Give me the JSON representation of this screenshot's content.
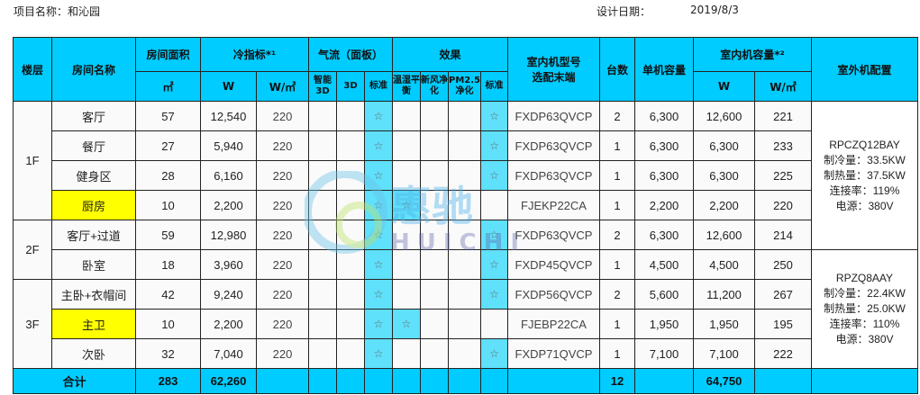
{
  "header": {
    "project_label": "项目名称：",
    "project_name": "和沁园",
    "date_label": "设计日期：",
    "date": "2019/8/3"
  },
  "columns": {
    "floor": "楼层",
    "room": "房间名称",
    "area": "房间面积",
    "area_unit": "㎡",
    "cooling": "冷指标*¹",
    "cooling_w": "W",
    "cooling_wm2": "W/㎡",
    "airflow": "气流（面板）",
    "airflow_smart": "智能3D",
    "airflow_3d": "3D",
    "airflow_std": "标准",
    "effect": "效果",
    "effect_humid": "温湿平衡",
    "effect_fresh": "新风净化",
    "effect_pm": "PM2.5净化",
    "effect_std": "标准",
    "model": "室内机型号选配末端",
    "qty": "台数",
    "unit_cap": "单机容量",
    "indoor_cap": "室内机容量*²",
    "indoor_w": "W",
    "indoor_wm2": "W/㎡",
    "outdoor": "室外机配置"
  },
  "star": "☆",
  "floors": [
    "1F",
    "2F",
    "3F"
  ],
  "rows": [
    {
      "room": "客厅",
      "area": "57",
      "w": "12,540",
      "wm2": "220",
      "air_std": true,
      "humid": false,
      "eff_std": true,
      "model": "FXDP63QVCP",
      "qty": "2",
      "unit": "6,300",
      "cap": "12,600",
      "capm2": "221",
      "highlight": false
    },
    {
      "room": "餐厅",
      "area": "27",
      "w": "5,940",
      "wm2": "220",
      "air_std": true,
      "humid": false,
      "eff_std": true,
      "model": "FXDP63QVCP",
      "qty": "1",
      "unit": "6,300",
      "cap": "6,300",
      "capm2": "233",
      "highlight": false
    },
    {
      "room": "健身区",
      "area": "28",
      "w": "6,160",
      "wm2": "220",
      "air_std": true,
      "humid": false,
      "eff_std": true,
      "model": "FXDP63QVCP",
      "qty": "1",
      "unit": "6,300",
      "cap": "6,300",
      "capm2": "225",
      "highlight": false
    },
    {
      "room": "厨房",
      "area": "10",
      "w": "2,200",
      "wm2": "220",
      "air_std": true,
      "humid": true,
      "eff_std": false,
      "model": "FJEKP22CA",
      "qty": "1",
      "unit": "2,200",
      "cap": "2,200",
      "capm2": "220",
      "highlight": true
    },
    {
      "room": "客厅+过道",
      "area": "59",
      "w": "12,980",
      "wm2": "220",
      "air_std": true,
      "humid": false,
      "eff_std": true,
      "model": "FXDP63QVCP",
      "qty": "2",
      "unit": "6,300",
      "cap": "12,600",
      "capm2": "214",
      "highlight": false
    },
    {
      "room": "卧室",
      "area": "18",
      "w": "3,960",
      "wm2": "220",
      "air_std": true,
      "humid": false,
      "eff_std": true,
      "model": "FXDP45QVCP",
      "qty": "1",
      "unit": "4,500",
      "cap": "4,500",
      "capm2": "250",
      "highlight": false
    },
    {
      "room": "主卧+衣帽间",
      "area": "42",
      "w": "9,240",
      "wm2": "220",
      "air_std": true,
      "humid": false,
      "eff_std": true,
      "model": "FXDP56QVCP",
      "qty": "2",
      "unit": "5,600",
      "cap": "11,200",
      "capm2": "267",
      "highlight": false
    },
    {
      "room": "主卫",
      "area": "10",
      "w": "2,200",
      "wm2": "220",
      "air_std": true,
      "humid": true,
      "eff_std": false,
      "model": "FJEBP22CA",
      "qty": "1",
      "unit": "1,950",
      "cap": "1,950",
      "capm2": "195",
      "highlight": true
    },
    {
      "room": "次卧",
      "area": "32",
      "w": "7,040",
      "wm2": "220",
      "air_std": true,
      "humid": false,
      "eff_std": true,
      "model": "FXDP71QVCP",
      "qty": "1",
      "unit": "7,100",
      "cap": "7,100",
      "capm2": "222",
      "highlight": false
    }
  ],
  "outdoor": [
    {
      "model": "RPCZQ12BAY",
      "cool": "制冷量：33.5KW",
      "heat": "制热量：37.5KW",
      "rate": "连接率：119%",
      "power": "电源：380V"
    },
    {
      "model": "RPZQ8AAY",
      "cool": "制冷量：22.4KW",
      "heat": "制热量：25.0KW",
      "rate": "连接率：110%",
      "power": "电源：380V"
    }
  ],
  "total": {
    "label": "合计",
    "area": "283",
    "w": "62,260",
    "qty": "12",
    "cap": "64,750"
  },
  "watermark": {
    "cn": "惠驰",
    "en": "HUICHI"
  }
}
